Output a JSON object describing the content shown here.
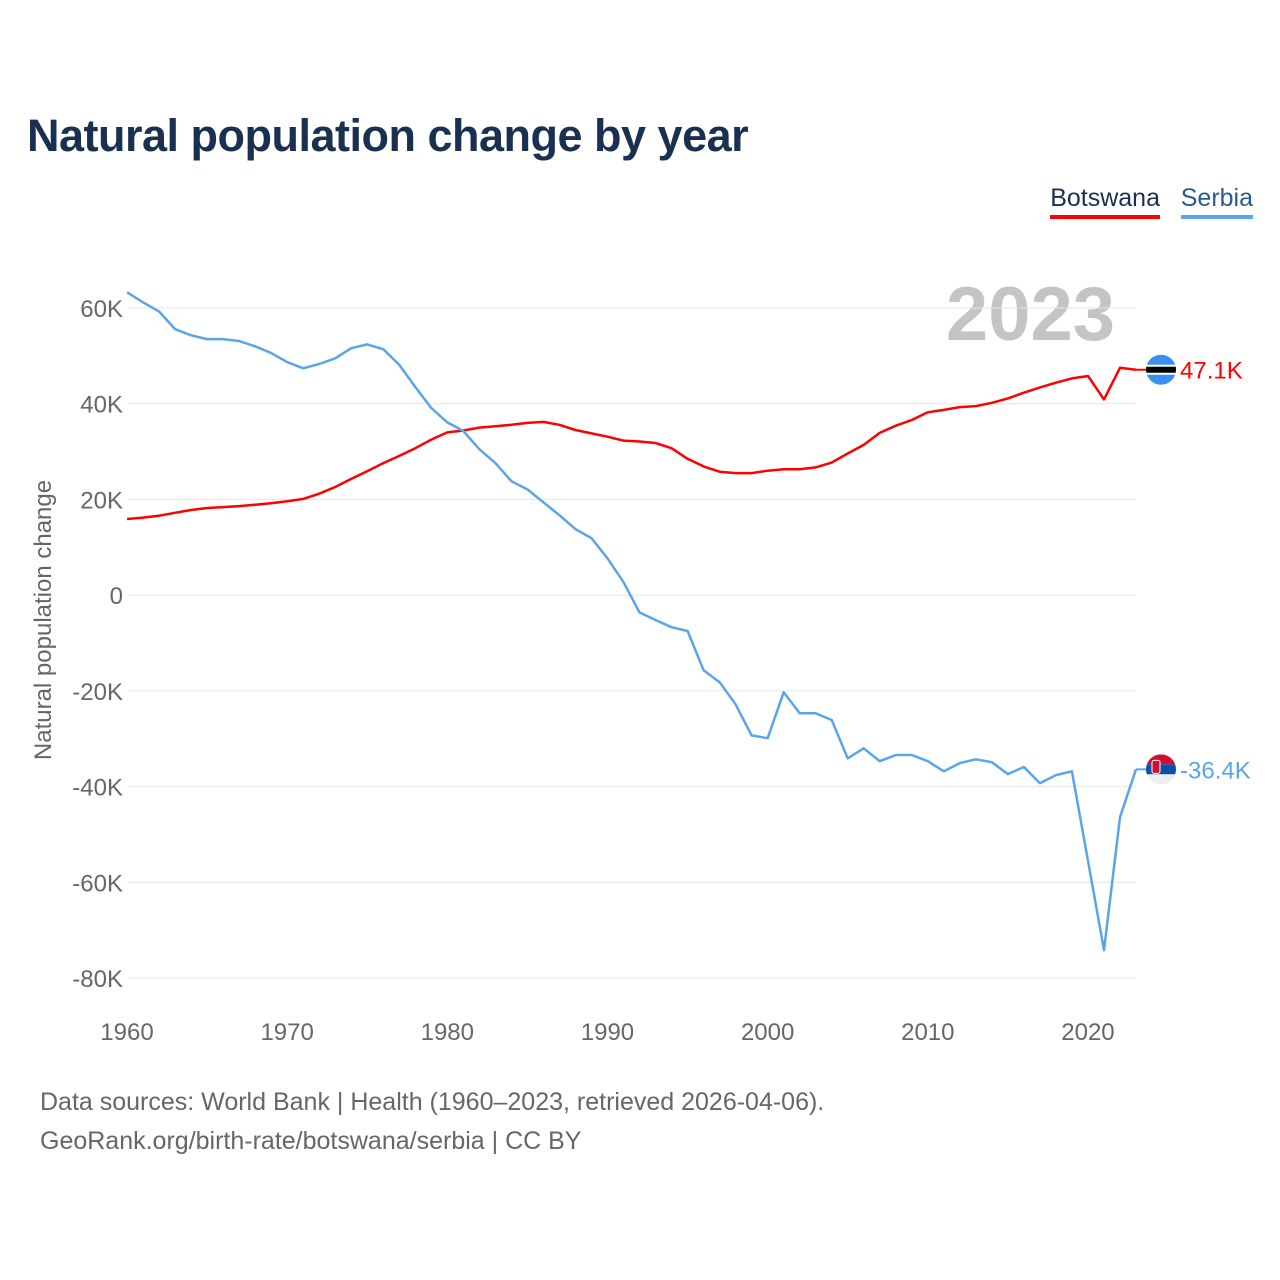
{
  "title": "Natural population change by year",
  "legend": [
    {
      "name": "Botswana",
      "color": "#ff0000"
    },
    {
      "name": "Serbia",
      "color": "#5aa5e8"
    }
  ],
  "footer": {
    "line1": "Data sources: World Bank | Health (1960–2023, retrieved 2026-04-06).",
    "line2": "GeoRank.org/birth-rate/botswana/serbia | CC BY"
  },
  "chart_data": {
    "type": "line",
    "title": "Natural population change by year",
    "xlabel": "",
    "ylabel": "Natural population change",
    "year_label": "2023",
    "xlim": [
      1960,
      2023
    ],
    "ylim": [
      -80000,
      60000
    ],
    "x_ticks": [
      1960,
      1970,
      1980,
      1990,
      2000,
      2010,
      2020
    ],
    "y_ticks": [
      60000,
      40000,
      20000,
      0,
      -20000,
      -40000,
      -60000,
      -80000
    ],
    "y_tick_labels": [
      "60K",
      "40K",
      "20K",
      "0",
      "-20K",
      "-40K",
      "-60K",
      "-80K"
    ],
    "grid": true,
    "legend_position": "top-right",
    "x": [
      1960,
      1961,
      1962,
      1963,
      1964,
      1965,
      1966,
      1967,
      1968,
      1969,
      1970,
      1971,
      1972,
      1973,
      1974,
      1975,
      1976,
      1977,
      1978,
      1979,
      1980,
      1981,
      1982,
      1983,
      1984,
      1985,
      1986,
      1987,
      1988,
      1989,
      1990,
      1991,
      1992,
      1993,
      1994,
      1995,
      1996,
      1997,
      1998,
      1999,
      2000,
      2001,
      2002,
      2003,
      2004,
      2005,
      2006,
      2007,
      2008,
      2009,
      2010,
      2011,
      2012,
      2013,
      2014,
      2015,
      2016,
      2017,
      2018,
      2019,
      2020,
      2021,
      2022,
      2023
    ],
    "series": [
      {
        "name": "Botswana",
        "color": "#ff0000",
        "end_label": "47.1K",
        "values": [
          15900,
          16200,
          16600,
          17200,
          17800,
          18200,
          18400,
          18600,
          18900,
          19200,
          19600,
          20100,
          21200,
          22600,
          24300,
          25900,
          27600,
          29100,
          30700,
          32500,
          34000,
          34400,
          35000,
          35300,
          35600,
          36000,
          36200,
          35600,
          34500,
          33800,
          33100,
          32300,
          32100,
          31800,
          30700,
          28500,
          26900,
          25800,
          25500,
          25500,
          26000,
          26300,
          26300,
          26700,
          27700,
          29600,
          31400,
          33900,
          35400,
          36600,
          38200,
          38700,
          39300,
          39500,
          40200,
          41100,
          42300,
          43400,
          44400,
          45300,
          45800,
          40900,
          47500,
          47100
        ]
      },
      {
        "name": "Serbia",
        "color": "#5aa5e8",
        "end_label": "-36.4K",
        "values": [
          63300,
          61200,
          59300,
          55600,
          54300,
          53500,
          53500,
          53100,
          52000,
          50600,
          48700,
          47400,
          48300,
          49500,
          51600,
          52400,
          51400,
          48100,
          43500,
          39100,
          36100,
          34300,
          30500,
          27600,
          23800,
          22100,
          19400,
          16700,
          13800,
          11900,
          7700,
          2700,
          -3600,
          -5200,
          -6700,
          -7500,
          -15700,
          -18200,
          -22800,
          -29300,
          -29900,
          -20300,
          -24700,
          -24700,
          -26100,
          -34100,
          -32000,
          -34700,
          -33400,
          -33400,
          -34700,
          -36800,
          -35100,
          -34300,
          -34900,
          -37400,
          -35900,
          -39300,
          -37600,
          -36800,
          -55500,
          -74200,
          -46400,
          -36400
        ]
      }
    ]
  }
}
